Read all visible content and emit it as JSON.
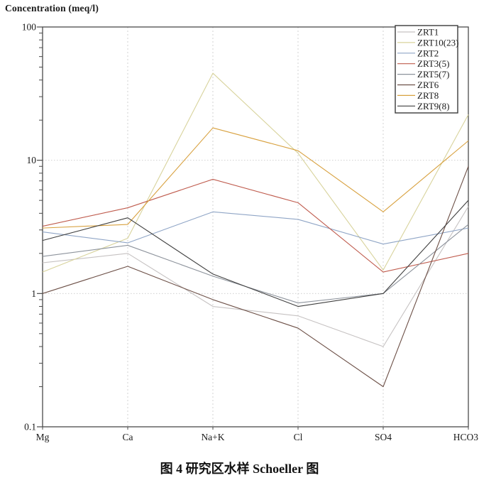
{
  "title": "Concentration (meq/l)",
  "caption": "图 4  研究区水样 Schoeller 图",
  "chart_data": {
    "type": "line",
    "title": "Concentration (meq/l)",
    "x_categories": [
      "Mg",
      "Ca",
      "Na+K",
      "Cl",
      "SO4",
      "HCO3"
    ],
    "y_axis": {
      "scale": "log",
      "min": 0.1,
      "max": 100,
      "tick_labels": [
        "100",
        "10",
        "1",
        "0.1"
      ]
    },
    "grid": {
      "vertical": "dashed-at-each-category",
      "horizontal": "dotted-at-decades",
      "color": "#c8c8c8"
    },
    "legend": {
      "position": "top-right",
      "border_color": "#3a3a3a"
    },
    "frame_color": "#4a4a4a",
    "series": [
      {
        "name": "ZRT1",
        "color": "#c6c2c2",
        "values": [
          1.7,
          2.0,
          0.8,
          0.68,
          0.4,
          4.5
        ]
      },
      {
        "name": "ZRT10(23)",
        "color": "#d8d39c",
        "values": [
          1.45,
          2.6,
          45.0,
          11.3,
          1.5,
          22.0
        ]
      },
      {
        "name": "ZRT2",
        "color": "#8fa5c6",
        "values": [
          2.9,
          2.4,
          4.1,
          3.6,
          2.35,
          3.1
        ]
      },
      {
        "name": "ZRT3(5)",
        "color": "#bf5b4d",
        "values": [
          3.2,
          4.4,
          7.2,
          4.8,
          1.45,
          2.0
        ]
      },
      {
        "name": "ZRT5(7)",
        "color": "#8d939c",
        "values": [
          1.9,
          2.3,
          1.35,
          0.85,
          1.0,
          3.3
        ]
      },
      {
        "name": "ZRT6",
        "color": "#6d5047",
        "values": [
          1.0,
          1.6,
          0.9,
          0.55,
          0.2,
          9.0
        ]
      },
      {
        "name": "ZRT8",
        "color": "#d8a13f",
        "values": [
          3.1,
          3.3,
          17.5,
          11.8,
          4.1,
          14.0
        ]
      },
      {
        "name": "ZRT9(8)",
        "color": "#3f3f3f",
        "values": [
          2.5,
          3.7,
          1.4,
          0.8,
          1.0,
          5.0
        ]
      }
    ]
  }
}
